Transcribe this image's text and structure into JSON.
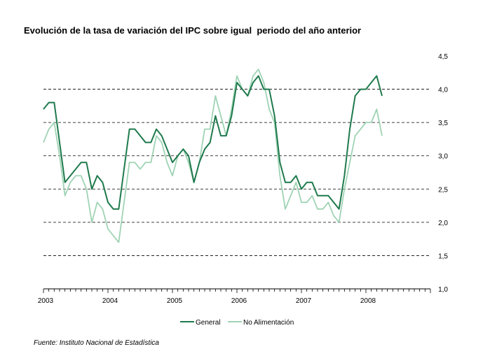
{
  "title": "Evolución de la tasa de variación del IPC sobre igual  periodo del año anterior",
  "source": "Fuente: Instituto Nacional de Estadística",
  "chart_data": {
    "type": "line",
    "title": "Evolución de la tasa de variación del IPC sobre igual  periodo del año anterior",
    "xlabel": "",
    "ylabel": "",
    "x_tick_labels": [
      "2003",
      "2004",
      "2005",
      "2006",
      "2007",
      "2008"
    ],
    "y_tick_labels": [
      "1,0",
      "1,5",
      "2,0",
      "2,5",
      "3,0",
      "3,5",
      "4,0",
      "4,5"
    ],
    "ylim": [
      1.0,
      4.5
    ],
    "xlim": [
      0,
      72
    ],
    "grid": "dashed horizontal at 1.5, 2.0, 2.5, 3.0, 3.5, 4.0",
    "legend_position": "bottom-center",
    "series": [
      {
        "name": "General",
        "color": "#1f7a4d",
        "values": [
          3.7,
          3.8,
          3.8,
          3.2,
          2.6,
          2.7,
          2.8,
          2.9,
          2.9,
          2.5,
          2.7,
          2.6,
          2.3,
          2.2,
          2.2,
          2.8,
          3.4,
          3.4,
          3.3,
          3.2,
          3.2,
          3.4,
          3.3,
          3.1,
          2.9,
          3.0,
          3.1,
          3.0,
          2.6,
          2.9,
          3.1,
          3.2,
          3.6,
          3.3,
          3.3,
          3.6,
          4.1,
          4.0,
          3.9,
          4.1,
          4.2,
          4.0,
          4.0,
          3.6,
          2.9,
          2.6,
          2.6,
          2.7,
          2.5,
          2.6,
          2.6,
          2.4,
          2.4,
          2.4,
          2.3,
          2.2,
          2.7,
          3.4,
          3.9,
          4.0,
          4.0,
          4.1,
          4.2,
          3.9
        ]
      },
      {
        "name": "No Alimentación",
        "color": "#9fd3b4",
        "values": [
          3.2,
          3.4,
          3.5,
          3.0,
          2.4,
          2.6,
          2.7,
          2.7,
          2.5,
          2.0,
          2.3,
          2.2,
          1.9,
          1.8,
          1.7,
          2.3,
          2.9,
          2.9,
          2.8,
          2.9,
          2.9,
          3.3,
          3.2,
          2.9,
          2.7,
          3.0,
          3.1,
          2.9,
          2.6,
          2.9,
          3.4,
          3.4,
          3.9,
          3.6,
          3.3,
          3.7,
          4.2,
          4.0,
          3.9,
          4.2,
          4.3,
          4.1,
          3.7,
          3.5,
          2.7,
          2.2,
          2.4,
          2.6,
          2.3,
          2.3,
          2.4,
          2.2,
          2.2,
          2.3,
          2.1,
          2.0,
          2.5,
          2.9,
          3.3,
          3.4,
          3.5,
          3.5,
          3.7,
          3.3
        ]
      }
    ]
  }
}
